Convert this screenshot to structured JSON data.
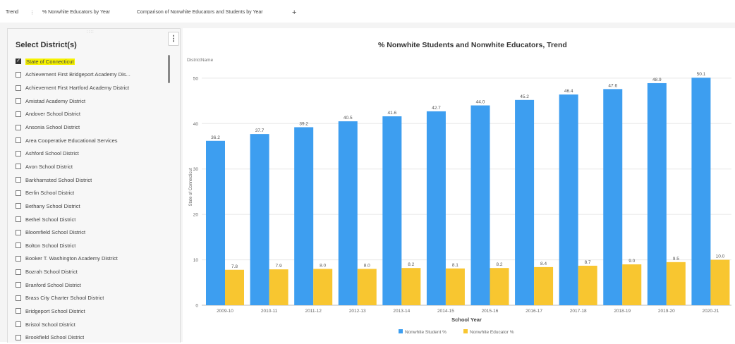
{
  "tabs": {
    "items": [
      "Trend",
      "% Nonwhite Educators by Year",
      "Comparison of Nonwhite Educators and Students by Year"
    ],
    "separator": "⋮",
    "add": "+"
  },
  "sidebar": {
    "title": "Select District(s)",
    "menu": "⋮",
    "grip": "::::",
    "items": [
      {
        "label": "State of Connecticut",
        "checked": true,
        "highlight": true
      },
      {
        "label": "Achievement First Bridgeport Academy Dis...",
        "checked": false
      },
      {
        "label": "Achievement First Hartford Academy District",
        "checked": false
      },
      {
        "label": "Amistad Academy District",
        "checked": false
      },
      {
        "label": "Andover School District",
        "checked": false
      },
      {
        "label": "Ansonia School District",
        "checked": false
      },
      {
        "label": "Area Cooperative Educational Services",
        "checked": false
      },
      {
        "label": "Ashford School District",
        "checked": false
      },
      {
        "label": "Avon School District",
        "checked": false
      },
      {
        "label": "Barkhamsted School District",
        "checked": false
      },
      {
        "label": "Berlin School District",
        "checked": false
      },
      {
        "label": "Bethany School District",
        "checked": false
      },
      {
        "label": "Bethel School District",
        "checked": false
      },
      {
        "label": "Bloomfield School District",
        "checked": false
      },
      {
        "label": "Bolton School District",
        "checked": false
      },
      {
        "label": "Booker T. Washington Academy District",
        "checked": false
      },
      {
        "label": "Bozrah School District",
        "checked": false
      },
      {
        "label": "Branford School District",
        "checked": false
      },
      {
        "label": "Brass City Charter School District",
        "checked": false
      },
      {
        "label": "Bridgeport School District",
        "checked": false
      },
      {
        "label": "Bristol School District",
        "checked": false
      },
      {
        "label": "Brookfield School District",
        "checked": false
      }
    ]
  },
  "chart_data": {
    "type": "bar",
    "title": "% Nonwhite Students and Nonwhite Educators, Trend",
    "subtitle": "DistrictName",
    "xlabel": "School Year",
    "ylabel": "State of Connecticut",
    "ylim": [
      0,
      52
    ],
    "yticks": [
      0,
      10,
      20,
      30,
      40,
      50
    ],
    "categories": [
      "2009-10",
      "2010-11",
      "2011-12",
      "2012-13",
      "2013-14",
      "2014-15",
      "2015-16",
      "2016-17",
      "2017-18",
      "2018-19",
      "2019-20",
      "2020-21"
    ],
    "series": [
      {
        "name": "Nonwhite Student %",
        "color": "#3d9ef0",
        "values": [
          36.2,
          37.7,
          39.2,
          40.5,
          41.6,
          42.7,
          44.0,
          45.2,
          46.4,
          47.6,
          48.9,
          50.1
        ]
      },
      {
        "name": "Nonwhite Educator %",
        "color": "#f8c630",
        "values": [
          7.8,
          7.9,
          8.0,
          8.0,
          8.2,
          8.1,
          8.2,
          8.4,
          8.7,
          9.0,
          9.5,
          10.0
        ]
      }
    ],
    "grid": true,
    "legend": "bottom-center"
  }
}
